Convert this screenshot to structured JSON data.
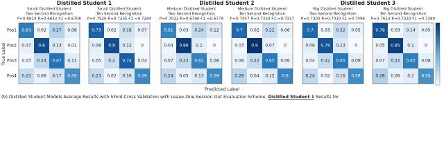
{
  "group_titles": [
    "Distilled Student 1",
    "Distilled Student 2",
    "Distilled Student 3"
  ],
  "row_labels": [
    "Pos1",
    "Pos2",
    "Pos3",
    "Pos4"
  ],
  "x_label": "Predicted Label",
  "y_label": "True Label",
  "color_range": [
    0,
    0.9
  ],
  "caption_parts": [
    "(b) Distilled Student Models Average Results with 5Fold-Cross Validation with Leave-One-Session Out Evaluation Scheme. ",
    "Distilled Student 1",
    " Results for"
  ],
  "chart_data": [
    {
      "type": "heatmap",
      "title": "Small Distilled Student",
      "subtitle": "Two Second Recognition",
      "metrics": "P=0.6914 R=0.6642 F1 =0.6708",
      "values": [
        [
          0.63,
          0.02,
          0.27,
          0.08
        ],
        [
          0.07,
          0.8,
          0.13,
          0.01
        ],
        [
          0.03,
          0.24,
          0.67,
          0.11
        ],
        [
          0.22,
          0.06,
          0.17,
          0.56
        ]
      ]
    },
    {
      "type": "heatmap",
      "title": "Small Distilled Student",
      "subtitle": "Ten Second Recognition",
      "metrics": "P=0.7520 R=0.7235 F1 =0.7284",
      "values": [
        [
          0.73,
          0.02,
          0.18,
          0.07
        ],
        [
          0.08,
          0.8,
          0.12,
          0.0
        ],
        [
          0.05,
          0.2,
          0.74,
          0.04
        ],
        [
          0.23,
          0.02,
          0.16,
          0.59
        ]
      ]
    },
    {
      "type": "heatmap",
      "title": "Medium Distilled Student",
      "subtitle": "Two Second Recognition",
      "metrics": "P=0.7012 R=0.6790 F1 =0.6779",
      "values": [
        [
          0.61,
          0.03,
          0.24,
          0.12
        ],
        [
          0.04,
          0.86,
          0.1,
          0.0
        ],
        [
          0.07,
          0.23,
          0.62,
          0.08
        ],
        [
          0.24,
          0.05,
          0.13,
          0.58
        ]
      ]
    },
    {
      "type": "heatmap",
      "title": "Medium Distilled Student",
      "subtitle": "Ten Second Recognition",
      "metrics": "P=0.7447 R=0.7333 F1 =0.7317",
      "values": [
        [
          0.7,
          0.02,
          0.22,
          0.06
        ],
        [
          0.03,
          0.9,
          0.07,
          0.0
        ],
        [
          0.06,
          0.22,
          0.65,
          0.06
        ],
        [
          0.26,
          0.04,
          0.12,
          0.6
        ]
      ]
    },
    {
      "type": "heatmap",
      "title": "Big Distilled Student",
      "subtitle": "Two Second Recognition",
      "metrics": "P=0.7300 R=0.7020 F1 =0.7096",
      "values": [
        [
          0.7,
          0.03,
          0.22,
          0.05
        ],
        [
          0.09,
          0.78,
          0.13,
          0.0
        ],
        [
          0.04,
          0.22,
          0.65,
          0.09
        ],
        [
          0.24,
          0.02,
          0.16,
          0.58
        ]
      ]
    },
    {
      "type": "heatmap",
      "title": "Big Distilled Student",
      "subtitle": "Ten Second Recognition",
      "metrics": "P=0.7613 R=0.7333 F1 =0.7380",
      "values": [
        [
          0.78,
          0.03,
          0.14,
          0.05
        ],
        [
          0.05,
          0.85,
          0.1,
          0.0
        ],
        [
          0.07,
          0.22,
          0.63,
          0.08
        ],
        [
          0.28,
          0.06,
          0.1,
          0.56
        ]
      ]
    }
  ]
}
